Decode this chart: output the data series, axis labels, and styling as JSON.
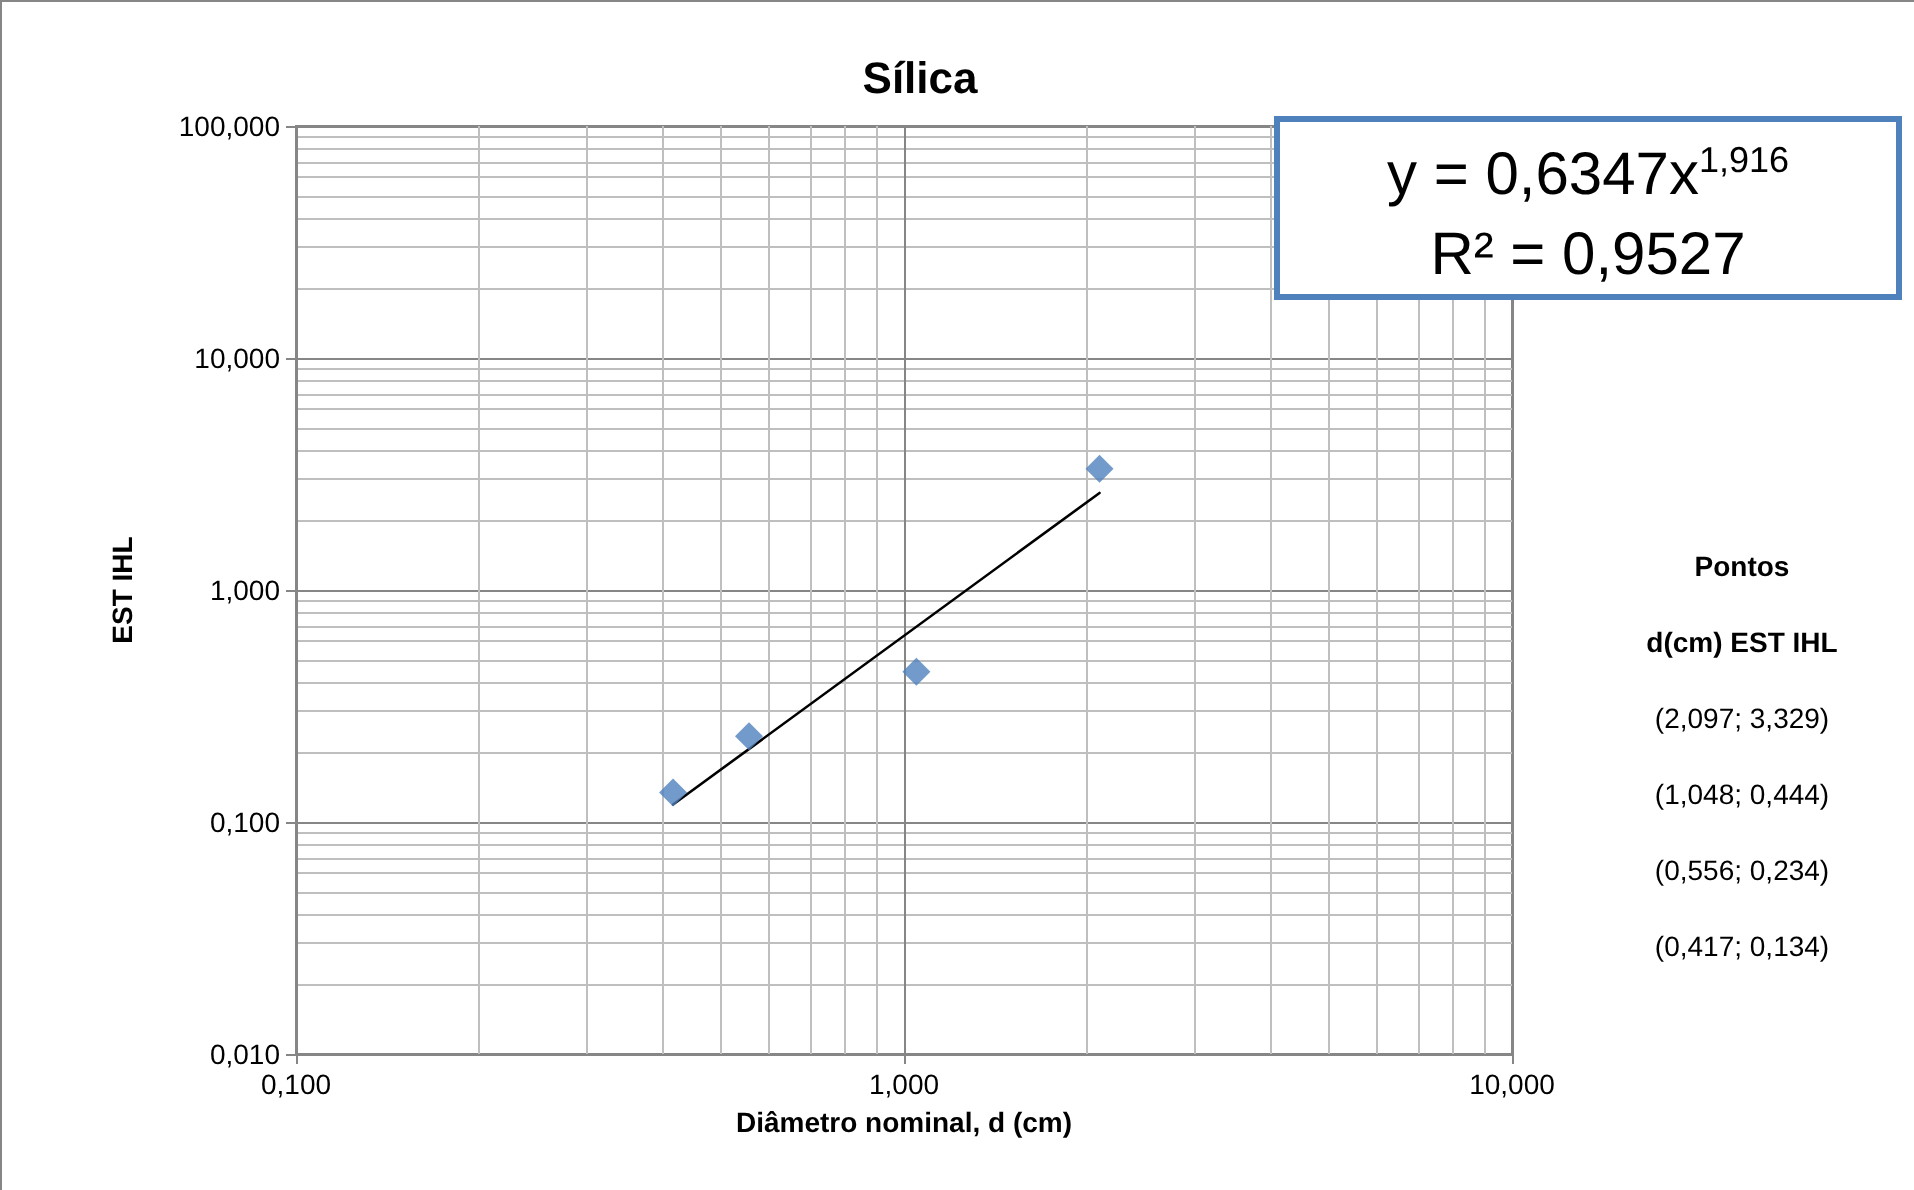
{
  "chart_data": {
    "type": "scatter",
    "title": "Sílica",
    "xlabel": "Diâmetro nominal, d (cm)",
    "ylabel": "EST IHL",
    "log": "xy",
    "grid": true,
    "xlim": [
      0.1,
      10
    ],
    "xticks": [
      {
        "value": 0.1,
        "label": "0,100"
      },
      {
        "value": 1,
        "label": "1,000"
      },
      {
        "value": 10,
        "label": "10,000"
      }
    ],
    "ylim": [
      0.01,
      100
    ],
    "yticks": [
      {
        "value": 0.01,
        "label": "0,010"
      },
      {
        "value": 0.1,
        "label": "0,100"
      },
      {
        "value": 1,
        "label": "1,000"
      },
      {
        "value": 10,
        "label": "10,000"
      },
      {
        "value": 100,
        "label": "100,000"
      }
    ],
    "series": [
      {
        "type": "scatter",
        "marker": "diamond",
        "color": "#4f81bd",
        "x": [
          2.097,
          1.048,
          0.556,
          0.417
        ],
        "values": [
          3.329,
          0.444,
          0.234,
          0.134
        ]
      },
      {
        "type": "line",
        "marker": "none",
        "line_style": "solid",
        "color": "#000000",
        "x": [
          0.417,
          2.097
        ],
        "values": [
          0.119,
          2.62
        ]
      }
    ],
    "annotations": [
      "y = 0,6347x$^{1,916}$",
      "R² = 0,9527",
      "Pontos",
      "d(cm) EST IHL",
      "(2,097; 3,329)",
      "(1,048; 0,444)",
      "(0,556; 0,234)",
      "(0,417; 0,134)"
    ]
  }
}
